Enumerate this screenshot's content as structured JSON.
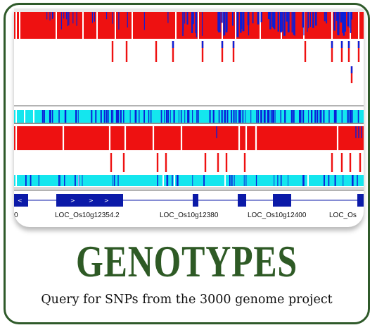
{
  "colors": {
    "frame": "#2f5a2a",
    "title": "#2e5a25",
    "ref_allele": "#ee1111",
    "alt_allele": "#0b1fd8",
    "het_cyan": "#14e6ee",
    "gene_model": "#0b1aa8"
  },
  "figure": {
    "gene_labels": [
      "0",
      "LOC_Os10g12354.2",
      "LOC_Os10g12380",
      "LOC_Os10g12400",
      "LOC_Os"
    ]
  },
  "title": "GENOTYPES",
  "subtitle": "Query for SNPs from the 3000 genome project"
}
